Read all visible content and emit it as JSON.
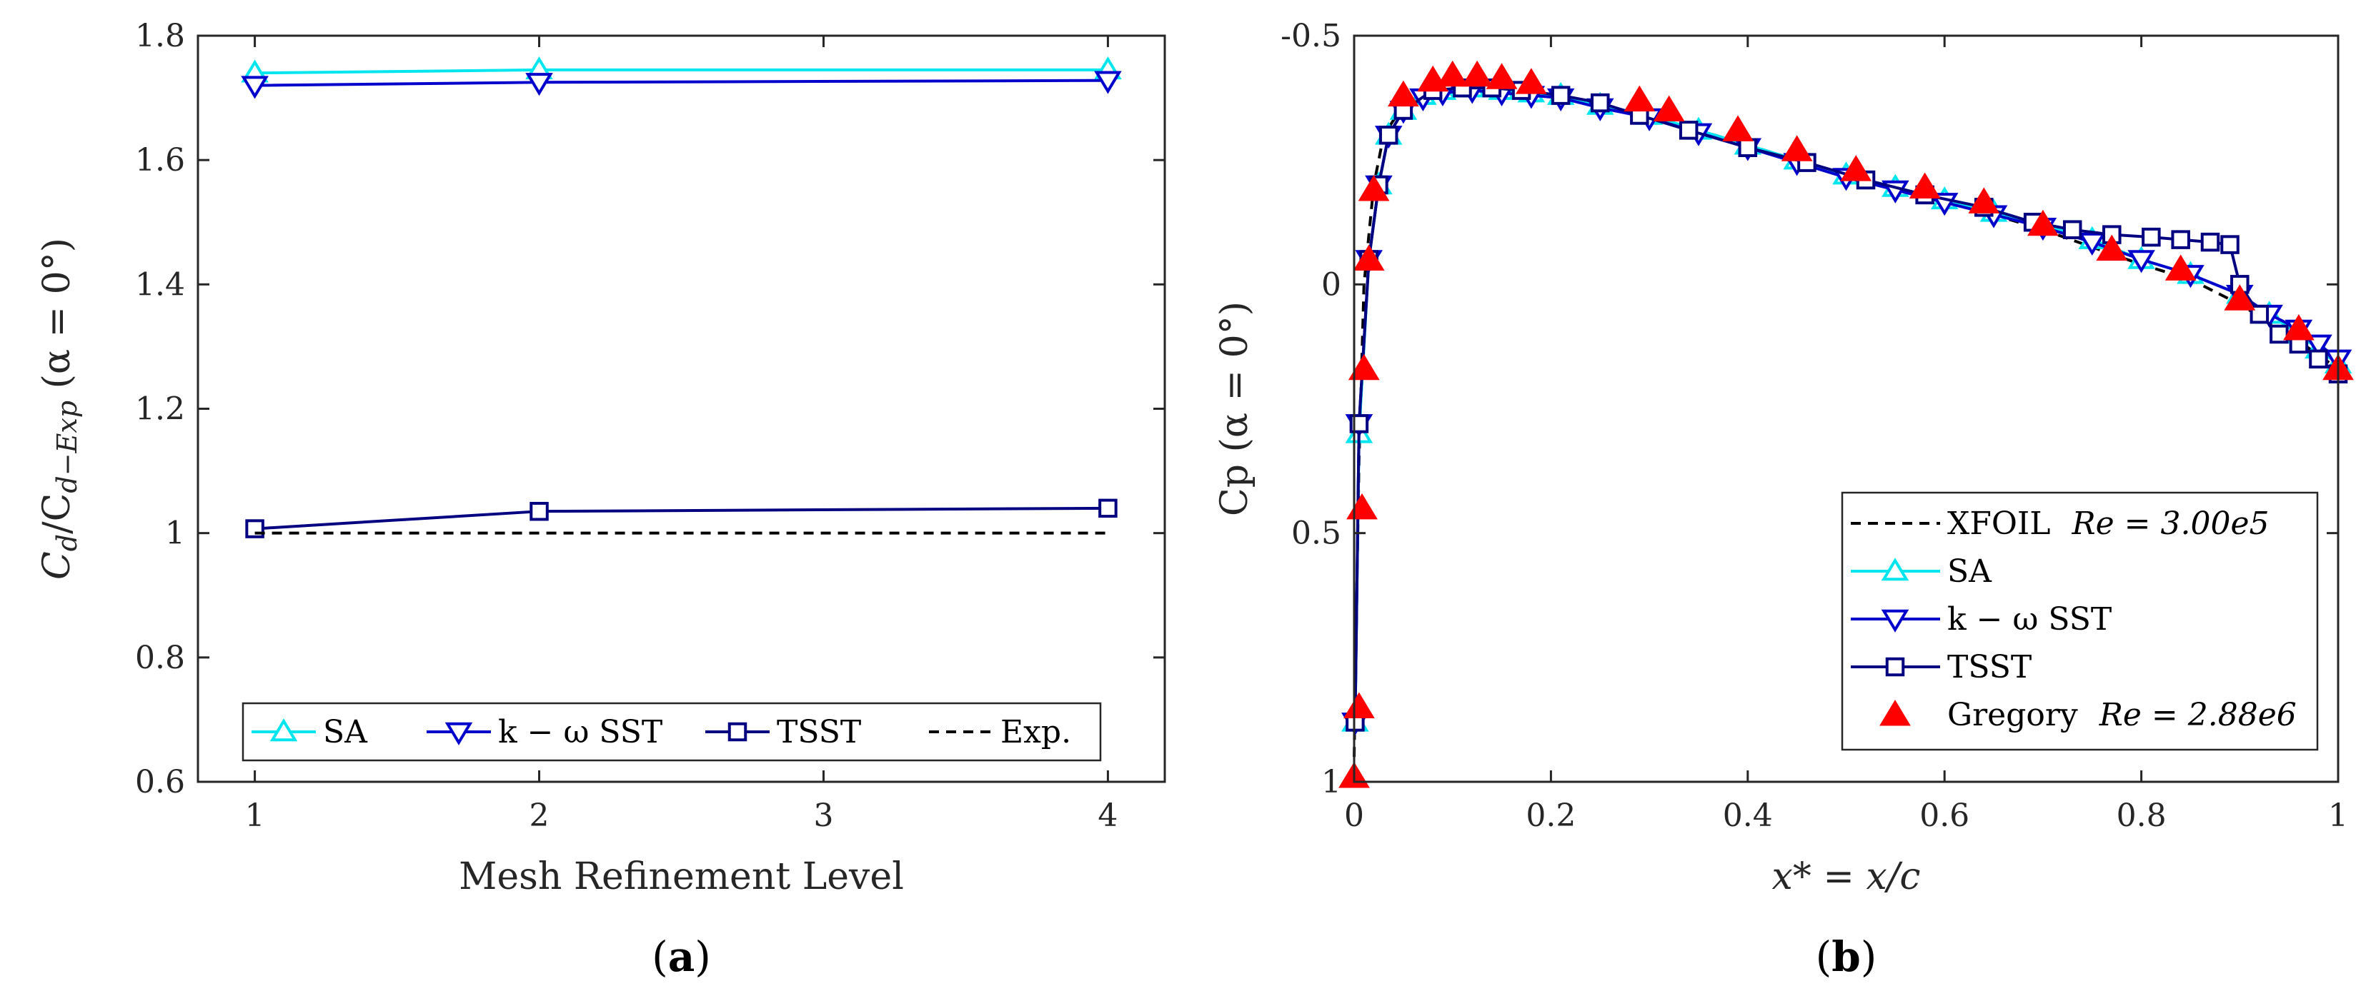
{
  "chart_data": [
    {
      "id": "a",
      "type": "line",
      "caption": "a",
      "xlabel": "Mesh Refinement Level",
      "ylabel": {
        "prefix": "C",
        "sub1": "d",
        "sep": "/C",
        "sub2": "d−Exp",
        "suffix": " (α = 0°)"
      },
      "xlim": [
        0.8,
        4.2
      ],
      "ylim": [
        0.6,
        1.8
      ],
      "xticks": [
        1,
        2,
        3,
        4
      ],
      "xtick_labels": [
        "1",
        "2",
        "3",
        "4"
      ],
      "yticks": [
        0.6,
        0.8,
        1.0,
        1.2,
        1.4,
        1.6,
        1.8
      ],
      "ytick_labels": [
        "0.6",
        "0.8",
        "1",
        "1.2",
        "1.4",
        "1.6",
        "1.8"
      ],
      "legend_position": "bottom",
      "series": [
        {
          "name": "SA",
          "color": "#00e5ee",
          "marker": "triangle-up",
          "x": [
            1,
            2,
            4
          ],
          "y": [
            1.74,
            1.745,
            1.745
          ]
        },
        {
          "name": "k − ω SST",
          "color": "#0000cd",
          "marker": "triangle-down",
          "x": [
            1,
            2,
            4
          ],
          "y": [
            1.72,
            1.725,
            1.728
          ]
        },
        {
          "name": "TSST",
          "color": "#000080",
          "marker": "square",
          "x": [
            1,
            2,
            4
          ],
          "y": [
            1.007,
            1.035,
            1.04
          ]
        },
        {
          "name": "Exp.",
          "color": "#000000",
          "marker": "none",
          "dash": true,
          "x": [
            1,
            4
          ],
          "y": [
            1.0,
            1.0
          ]
        }
      ]
    },
    {
      "id": "b",
      "type": "line",
      "caption": "b",
      "xlabel": "x* = x/c",
      "ylabel": "Cp (α = 0°)",
      "xlim": [
        0,
        1
      ],
      "ylim": [
        -0.5,
        1
      ],
      "y_reversed": true,
      "xticks": [
        0,
        0.2,
        0.4,
        0.6,
        0.8,
        1
      ],
      "xtick_labels": [
        "0",
        "0.2",
        "0.4",
        "0.6",
        "0.8",
        "1"
      ],
      "yticks": [
        -0.5,
        0,
        0.5,
        1
      ],
      "ytick_labels": [
        "-0.5",
        "0",
        "0.5",
        "1"
      ],
      "legend_position": "bottom-right",
      "series": [
        {
          "name": "XFOIL",
          "legend_extra": "Re = 3.00e5",
          "color": "#000000",
          "marker": "none",
          "dash": true,
          "x": [
            0.0,
            0.002,
            0.005,
            0.01,
            0.02,
            0.03,
            0.05,
            0.08,
            0.1,
            0.15,
            0.2,
            0.3,
            0.4,
            0.5,
            0.6,
            0.7,
            0.8,
            0.85,
            0.88,
            0.9,
            0.95,
            1.0
          ],
          "y": [
            0.95,
            0.7,
            0.35,
            0.0,
            -0.2,
            -0.3,
            -0.36,
            -0.39,
            -0.395,
            -0.39,
            -0.38,
            -0.34,
            -0.28,
            -0.22,
            -0.17,
            -0.11,
            -0.04,
            -0.01,
            0.02,
            0.04,
            0.1,
            0.17
          ]
        },
        {
          "name": "SA",
          "color": "#00e5ee",
          "marker": "triangle-up",
          "x": [
            0.001,
            0.005,
            0.015,
            0.025,
            0.035,
            0.05,
            0.07,
            0.09,
            0.12,
            0.15,
            0.18,
            0.21,
            0.25,
            0.3,
            0.35,
            0.4,
            0.45,
            0.5,
            0.55,
            0.6,
            0.65,
            0.7,
            0.75,
            0.8,
            0.85,
            0.9,
            0.93,
            0.96,
            0.98,
            1.0
          ],
          "y": [
            0.88,
            0.3,
            -0.05,
            -0.2,
            -0.3,
            -0.35,
            -0.38,
            -0.39,
            -0.395,
            -0.39,
            -0.385,
            -0.38,
            -0.36,
            -0.34,
            -0.31,
            -0.28,
            -0.25,
            -0.22,
            -0.195,
            -0.17,
            -0.145,
            -0.12,
            -0.09,
            -0.05,
            -0.02,
            0.02,
            0.06,
            0.1,
            0.13,
            0.16
          ]
        },
        {
          "name": "k − ω SST",
          "color": "#0000cd",
          "marker": "triangle-down",
          "x": [
            0.001,
            0.005,
            0.015,
            0.025,
            0.035,
            0.05,
            0.07,
            0.09,
            0.12,
            0.15,
            0.18,
            0.21,
            0.25,
            0.3,
            0.35,
            0.4,
            0.45,
            0.5,
            0.55,
            0.6,
            0.65,
            0.7,
            0.75,
            0.8,
            0.85,
            0.9,
            0.93,
            0.96,
            0.98,
            1.0
          ],
          "y": [
            0.88,
            0.28,
            -0.05,
            -0.2,
            -0.3,
            -0.35,
            -0.375,
            -0.385,
            -0.39,
            -0.385,
            -0.38,
            -0.375,
            -0.355,
            -0.335,
            -0.305,
            -0.275,
            -0.245,
            -0.215,
            -0.19,
            -0.165,
            -0.14,
            -0.115,
            -0.085,
            -0.05,
            -0.02,
            0.02,
            0.06,
            0.09,
            0.12,
            0.15
          ]
        },
        {
          "name": "TSST",
          "color": "#000080",
          "marker": "square",
          "x": [
            0.001,
            0.005,
            0.015,
            0.025,
            0.035,
            0.05,
            0.08,
            0.11,
            0.14,
            0.17,
            0.21,
            0.25,
            0.29,
            0.34,
            0.4,
            0.46,
            0.52,
            0.58,
            0.64,
            0.69,
            0.73,
            0.77,
            0.81,
            0.84,
            0.87,
            0.89,
            0.9,
            0.92,
            0.94,
            0.96,
            0.98,
            1.0
          ],
          "y": [
            0.88,
            0.28,
            -0.05,
            -0.2,
            -0.3,
            -0.35,
            -0.39,
            -0.395,
            -0.395,
            -0.39,
            -0.38,
            -0.365,
            -0.34,
            -0.31,
            -0.275,
            -0.245,
            -0.21,
            -0.18,
            -0.155,
            -0.125,
            -0.11,
            -0.1,
            -0.095,
            -0.09,
            -0.085,
            -0.08,
            0.0,
            0.06,
            0.1,
            0.12,
            0.15,
            0.18
          ]
        },
        {
          "name": "Gregory",
          "legend_extra": "Re = 2.88e6",
          "color": "#ff0000",
          "marker": "filled-triangle-up",
          "line": false,
          "x": [
            0.0,
            0.005,
            0.008,
            0.01,
            0.015,
            0.02,
            0.05,
            0.08,
            0.1,
            0.125,
            0.15,
            0.18,
            0.29,
            0.32,
            0.39,
            0.45,
            0.51,
            0.58,
            0.64,
            0.7,
            0.77,
            0.84,
            0.9,
            0.96,
            1.0
          ],
          "y": [
            0.99,
            0.85,
            0.45,
            0.17,
            -0.05,
            -0.19,
            -0.38,
            -0.41,
            -0.42,
            -0.42,
            -0.415,
            -0.405,
            -0.37,
            -0.35,
            -0.31,
            -0.27,
            -0.23,
            -0.195,
            -0.165,
            -0.12,
            -0.07,
            -0.03,
            0.03,
            0.09,
            0.17
          ]
        }
      ]
    }
  ]
}
